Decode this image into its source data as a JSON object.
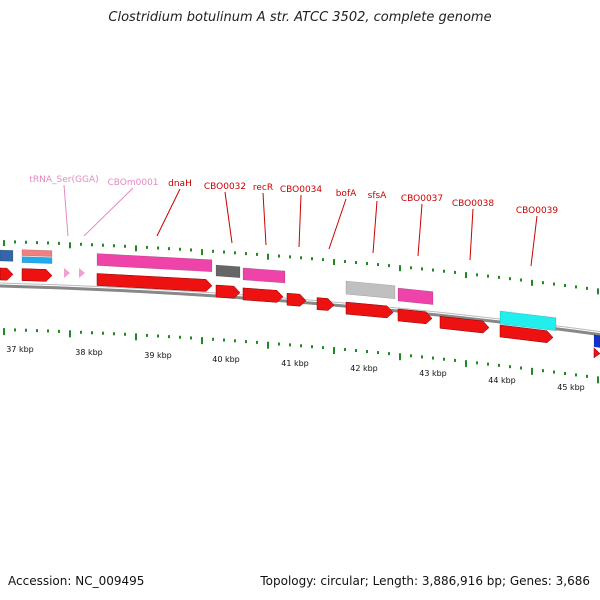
{
  "title": "Clostridium botulinum A str. ATCC 3502, complete genome",
  "footer": {
    "accession": "Accession: NC_009495",
    "topology": "Topology: circular; Length: 3,886,916 bp; Genes: 3,686"
  },
  "colors": {
    "cds": "#ee1111",
    "pink_feature": "#ee44aa",
    "gray_feature": "#666666",
    "light_gray_feature": "#c0c0c0",
    "cyan_feature": "#22eeee",
    "blue_feature": "#1133cc",
    "trna": "#f0a0d0",
    "backbone": "#888888",
    "label_red": "#cc0000",
    "label_pink": "#e48ac0",
    "tick_green": "#228822"
  },
  "gene_labels": [
    {
      "text": "tRNA_Ser(GGA)",
      "color": "pink"
    },
    {
      "text": "CBOm0001",
      "color": "pink"
    },
    {
      "text": "dnaH",
      "color": "red"
    },
    {
      "text": "CBO0032",
      "color": "red"
    },
    {
      "text": "recR",
      "color": "red"
    },
    {
      "text": "CBO0034",
      "color": "red"
    },
    {
      "text": "bofA",
      "color": "red"
    },
    {
      "text": "sfsA",
      "color": "red"
    },
    {
      "text": "CBO0037",
      "color": "red"
    },
    {
      "text": "CBO0038",
      "color": "red"
    },
    {
      "text": "CBO0039",
      "color": "red"
    }
  ],
  "scale_labels": [
    "37 kbp",
    "38 kbp",
    "39 kbp",
    "40 kbp",
    "41 kbp",
    "42 kbp",
    "43 kbp",
    "44 kbp",
    "45 kbp"
  ]
}
